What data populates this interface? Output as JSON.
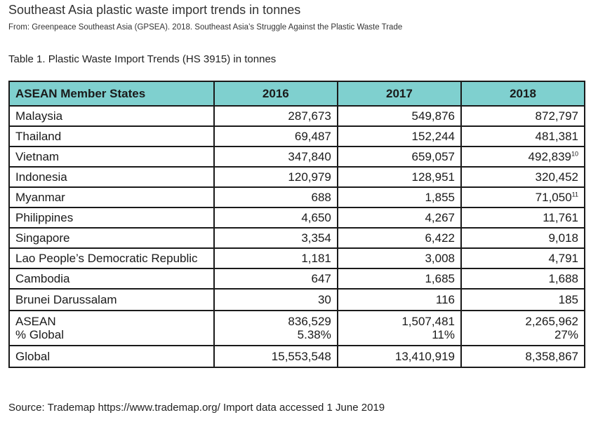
{
  "page": {
    "title": "Southeast Asia plastic waste import trends in tonnes",
    "source": "From: Greenpeace Southeast Asia (GPSEA). 2018. Southeast Asia’s Struggle Against the Plastic Waste Trade"
  },
  "table": {
    "caption": "Table 1. Plastic Waste Import Trends (HS 3915) in tonnes",
    "header_color": "#7fd0cf",
    "headers": [
      "ASEAN Member States",
      "2016",
      "2017",
      "2018"
    ],
    "rows": [
      {
        "name": "Malaysia",
        "y2016": "287,673",
        "y2017": "549,876",
        "y2018": "872,797",
        "note": ""
      },
      {
        "name": "Thailand",
        "y2016": "69,487",
        "y2017": "152,244",
        "y2018": "481,381",
        "note": ""
      },
      {
        "name": "Vietnam",
        "y2016": "347,840",
        "y2017": "659,057",
        "y2018": "492,839",
        "note": "10"
      },
      {
        "name": "Indonesia",
        "y2016": "120,979",
        "y2017": "128,951",
        "y2018": "320,452",
        "note": ""
      },
      {
        "name": "Myanmar",
        "y2016": "688",
        "y2017": "1,855",
        "y2018": "71,050",
        "note": "11"
      },
      {
        "name": "Philippines",
        "y2016": "4,650",
        "y2017": "4,267",
        "y2018": "11,761",
        "note": ""
      },
      {
        "name": "Singapore",
        "y2016": "3,354",
        "y2017": "6,422",
        "y2018": "9,018",
        "note": ""
      },
      {
        "name": "Lao People’s Democratic Republic",
        "y2016": "1,181",
        "y2017": "3,008",
        "y2018": "4,791",
        "note": ""
      },
      {
        "name": "Cambodia",
        "y2016": "647",
        "y2017": "1,685",
        "y2018": "1,688",
        "note": ""
      },
      {
        "name": "Brunei Darussalam",
        "y2016": "30",
        "y2017": "116",
        "y2018": "185",
        "note": ""
      }
    ],
    "asean": {
      "name": "ASEAN",
      "pct_label": "% Global",
      "y2016": "836,529",
      "y2016_pct": "5.38%",
      "y2017": "1,507,481",
      "y2017_pct": "11%",
      "y2018": "2,265,962",
      "y2018_pct": "27%"
    },
    "global": {
      "name": "Global",
      "y2016": "15,553,548",
      "y2017": "13,410,919",
      "y2018": "8,358,867"
    }
  },
  "footer": {
    "source": "Source: Trademap https://www.trademap.org/ Import data accessed 1 June 2019"
  }
}
